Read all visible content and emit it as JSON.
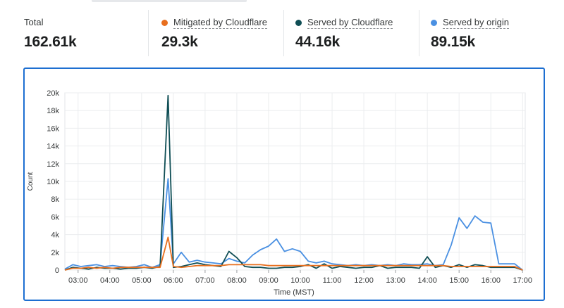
{
  "stats": [
    {
      "label": "Total",
      "value": "162.61k",
      "color": null
    },
    {
      "label": "Mitigated by Cloudflare",
      "value": "29.3k",
      "color": "#e86f1e"
    },
    {
      "label": "Served by Cloudflare",
      "value": "44.16k",
      "color": "#0f4e55"
    },
    {
      "label": "Served by origin",
      "value": "89.15k",
      "color": "#4a90e2"
    }
  ],
  "chart_data": {
    "type": "line",
    "xlabel": "Time (MST)",
    "ylabel": "Count",
    "ylim": [
      0,
      20000
    ],
    "yticks": [
      0,
      2000,
      4000,
      6000,
      8000,
      10000,
      12000,
      14000,
      16000,
      18000,
      20000
    ],
    "yticklabels": [
      "0",
      "2k",
      "4k",
      "6k",
      "8k",
      "10k",
      "12k",
      "14k",
      "16k",
      "18k",
      "20k"
    ],
    "xlim": [
      "02:35",
      "17:05"
    ],
    "xticklabels": [
      "03:00",
      "04:00",
      "05:00",
      "06:00",
      "07:00",
      "08:00",
      "09:00",
      "10:00",
      "11:00",
      "12:00",
      "13:00",
      "14:00",
      "15:00",
      "16:00",
      "17:00"
    ],
    "grid": true,
    "series": [
      {
        "name": "Served by origin",
        "color": "#4a90e2",
        "points": [
          [
            "02:35",
            100
          ],
          [
            "02:50",
            600
          ],
          [
            "03:05",
            400
          ],
          [
            "03:20",
            500
          ],
          [
            "03:35",
            600
          ],
          [
            "03:50",
            400
          ],
          [
            "04:05",
            500
          ],
          [
            "04:20",
            400
          ],
          [
            "04:35",
            300
          ],
          [
            "04:50",
            400
          ],
          [
            "05:05",
            600
          ],
          [
            "05:20",
            300
          ],
          [
            "05:35",
            600
          ],
          [
            "05:50",
            10300
          ],
          [
            "06:00",
            700
          ],
          [
            "06:15",
            2000
          ],
          [
            "06:30",
            900
          ],
          [
            "06:45",
            1100
          ],
          [
            "07:00",
            900
          ],
          [
            "07:15",
            800
          ],
          [
            "07:30",
            700
          ],
          [
            "07:45",
            1300
          ],
          [
            "08:00",
            1000
          ],
          [
            "08:15",
            800
          ],
          [
            "08:30",
            1700
          ],
          [
            "08:45",
            2300
          ],
          [
            "09:00",
            2700
          ],
          [
            "09:15",
            3500
          ],
          [
            "09:30",
            2100
          ],
          [
            "09:45",
            2400
          ],
          [
            "10:00",
            2100
          ],
          [
            "10:15",
            1000
          ],
          [
            "10:30",
            800
          ],
          [
            "10:45",
            1000
          ],
          [
            "11:00",
            700
          ],
          [
            "11:15",
            600
          ],
          [
            "11:30",
            500
          ],
          [
            "11:45",
            600
          ],
          [
            "12:00",
            500
          ],
          [
            "12:15",
            600
          ],
          [
            "12:30",
            500
          ],
          [
            "12:45",
            600
          ],
          [
            "13:00",
            500
          ],
          [
            "13:15",
            700
          ],
          [
            "13:30",
            600
          ],
          [
            "13:45",
            600
          ],
          [
            "14:00",
            700
          ],
          [
            "14:15",
            500
          ],
          [
            "14:30",
            600
          ],
          [
            "14:45",
            2800
          ],
          [
            "15:00",
            5900
          ],
          [
            "15:15",
            4700
          ],
          [
            "15:30",
            6100
          ],
          [
            "15:45",
            5400
          ],
          [
            "16:00",
            5300
          ],
          [
            "16:15",
            700
          ],
          [
            "16:30",
            700
          ],
          [
            "16:45",
            700
          ],
          [
            "17:00",
            0
          ]
        ]
      },
      {
        "name": "Served by Cloudflare",
        "color": "#0f4e55",
        "points": [
          [
            "02:35",
            0
          ],
          [
            "02:50",
            300
          ],
          [
            "03:05",
            200
          ],
          [
            "03:20",
            100
          ],
          [
            "03:35",
            300
          ],
          [
            "03:50",
            200
          ],
          [
            "04:05",
            200
          ],
          [
            "04:20",
            100
          ],
          [
            "04:35",
            200
          ],
          [
            "04:50",
            200
          ],
          [
            "05:05",
            300
          ],
          [
            "05:20",
            200
          ],
          [
            "05:35",
            400
          ],
          [
            "05:50",
            19700
          ],
          [
            "06:00",
            300
          ],
          [
            "06:15",
            400
          ],
          [
            "06:30",
            600
          ],
          [
            "06:45",
            800
          ],
          [
            "07:00",
            600
          ],
          [
            "07:15",
            500
          ],
          [
            "07:30",
            400
          ],
          [
            "07:45",
            2100
          ],
          [
            "08:00",
            1400
          ],
          [
            "08:15",
            400
          ],
          [
            "08:30",
            300
          ],
          [
            "08:45",
            300
          ],
          [
            "09:00",
            200
          ],
          [
            "09:15",
            200
          ],
          [
            "09:30",
            300
          ],
          [
            "09:45",
            300
          ],
          [
            "10:00",
            400
          ],
          [
            "10:15",
            600
          ],
          [
            "10:30",
            200
          ],
          [
            "10:45",
            700
          ],
          [
            "11:00",
            200
          ],
          [
            "11:15",
            400
          ],
          [
            "11:30",
            300
          ],
          [
            "11:45",
            200
          ],
          [
            "12:00",
            300
          ],
          [
            "12:15",
            300
          ],
          [
            "12:30",
            500
          ],
          [
            "12:45",
            200
          ],
          [
            "13:00",
            300
          ],
          [
            "13:15",
            300
          ],
          [
            "13:30",
            300
          ],
          [
            "13:45",
            200
          ],
          [
            "14:00",
            1500
          ],
          [
            "14:15",
            300
          ],
          [
            "14:30",
            500
          ],
          [
            "14:45",
            300
          ],
          [
            "15:00",
            600
          ],
          [
            "15:15",
            300
          ],
          [
            "15:30",
            600
          ],
          [
            "15:45",
            500
          ],
          [
            "16:00",
            300
          ],
          [
            "16:15",
            300
          ],
          [
            "16:30",
            300
          ],
          [
            "16:45",
            300
          ],
          [
            "17:00",
            0
          ]
        ]
      },
      {
        "name": "Mitigated by Cloudflare",
        "color": "#e86f1e",
        "points": [
          [
            "02:35",
            0
          ],
          [
            "02:50",
            200
          ],
          [
            "03:05",
            200
          ],
          [
            "03:20",
            300
          ],
          [
            "03:35",
            200
          ],
          [
            "03:50",
            300
          ],
          [
            "04:05",
            200
          ],
          [
            "04:20",
            300
          ],
          [
            "04:35",
            300
          ],
          [
            "04:50",
            300
          ],
          [
            "05:05",
            300
          ],
          [
            "05:20",
            300
          ],
          [
            "05:35",
            300
          ],
          [
            "05:50",
            3700
          ],
          [
            "06:00",
            400
          ],
          [
            "06:15",
            300
          ],
          [
            "06:30",
            400
          ],
          [
            "06:45",
            500
          ],
          [
            "07:00",
            500
          ],
          [
            "07:15",
            500
          ],
          [
            "07:30",
            500
          ],
          [
            "07:45",
            600
          ],
          [
            "08:00",
            600
          ],
          [
            "08:15",
            600
          ],
          [
            "08:30",
            600
          ],
          [
            "08:45",
            600
          ],
          [
            "09:00",
            500
          ],
          [
            "09:15",
            500
          ],
          [
            "09:30",
            500
          ],
          [
            "09:45",
            500
          ],
          [
            "10:00",
            500
          ],
          [
            "10:15",
            500
          ],
          [
            "10:30",
            500
          ],
          [
            "10:45",
            500
          ],
          [
            "11:00",
            500
          ],
          [
            "11:15",
            500
          ],
          [
            "11:30",
            500
          ],
          [
            "11:45",
            500
          ],
          [
            "12:00",
            500
          ],
          [
            "12:15",
            500
          ],
          [
            "12:30",
            500
          ],
          [
            "12:45",
            500
          ],
          [
            "13:00",
            500
          ],
          [
            "13:15",
            500
          ],
          [
            "13:30",
            500
          ],
          [
            "13:45",
            500
          ],
          [
            "14:00",
            500
          ],
          [
            "14:15",
            500
          ],
          [
            "14:30",
            500
          ],
          [
            "14:45",
            400
          ],
          [
            "15:00",
            400
          ],
          [
            "15:15",
            400
          ],
          [
            "15:30",
            400
          ],
          [
            "15:45",
            400
          ],
          [
            "16:00",
            400
          ],
          [
            "16:15",
            400
          ],
          [
            "16:30",
            400
          ],
          [
            "16:45",
            400
          ],
          [
            "17:00",
            0
          ]
        ]
      }
    ]
  }
}
